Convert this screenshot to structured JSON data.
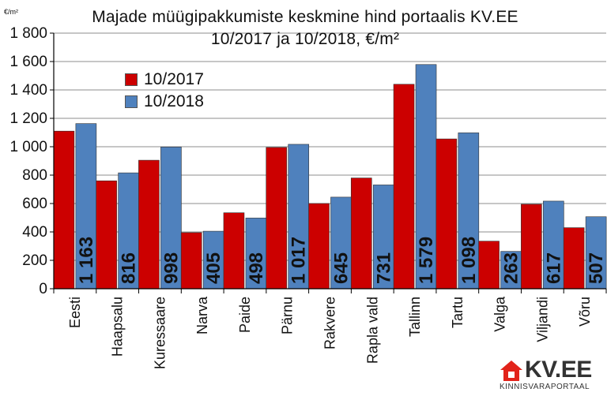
{
  "unit_label": "€/m²",
  "title_line1": "Majade müügipakkumiste keskmine hind portaalis KV.EE",
  "title_line2": "10/2017 ja 10/2018, €/m²",
  "logo": {
    "text": "KV.EE",
    "subtitle": "KINNISVARAPORTAAL",
    "color": "#e2231a"
  },
  "colors": {
    "series_2017": "#cc0000",
    "series_2018": "#4f81bd",
    "grid": "#8c8c8c",
    "axis": "#000000"
  },
  "chart_data": {
    "type": "bar",
    "title": "Majade müügipakkumiste keskmine hind portaalis KV.EE 10/2017 ja 10/2018, €/m²",
    "ylabel": "€/m²",
    "xlabel": "",
    "ylim": [
      0,
      1800
    ],
    "yticks": [
      0,
      200,
      400,
      600,
      800,
      1000,
      1200,
      1400,
      1600,
      1800
    ],
    "ytick_labels": [
      "0",
      "200",
      "400",
      "600",
      "800",
      "1 000",
      "1 200",
      "1 400",
      "1 600",
      "1 800"
    ],
    "grid": true,
    "legend_position": "top-left",
    "categories": [
      "Eesti",
      "Haapsalu",
      "Kuressaare",
      "Narva",
      "Paide",
      "Pärnu",
      "Rakvere",
      "Rapla vald",
      "Tallinn",
      "Tartu",
      "Valga",
      "Viljandi",
      "Võru"
    ],
    "series": [
      {
        "name": "10/2017",
        "color": "#cc0000",
        "values": [
          1110,
          760,
          905,
          395,
          535,
          995,
          600,
          780,
          1440,
          1055,
          335,
          595,
          430
        ]
      },
      {
        "name": "10/2018",
        "color": "#4f81bd",
        "values": [
          1163,
          816,
          998,
          405,
          498,
          1017,
          645,
          731,
          1579,
          1098,
          263,
          617,
          507
        ],
        "data_labels": [
          "1 163",
          "816",
          "998",
          "405",
          "498",
          "1 017",
          "645",
          "731",
          "1 579",
          "1 098",
          "263",
          "617",
          "507"
        ]
      }
    ]
  }
}
